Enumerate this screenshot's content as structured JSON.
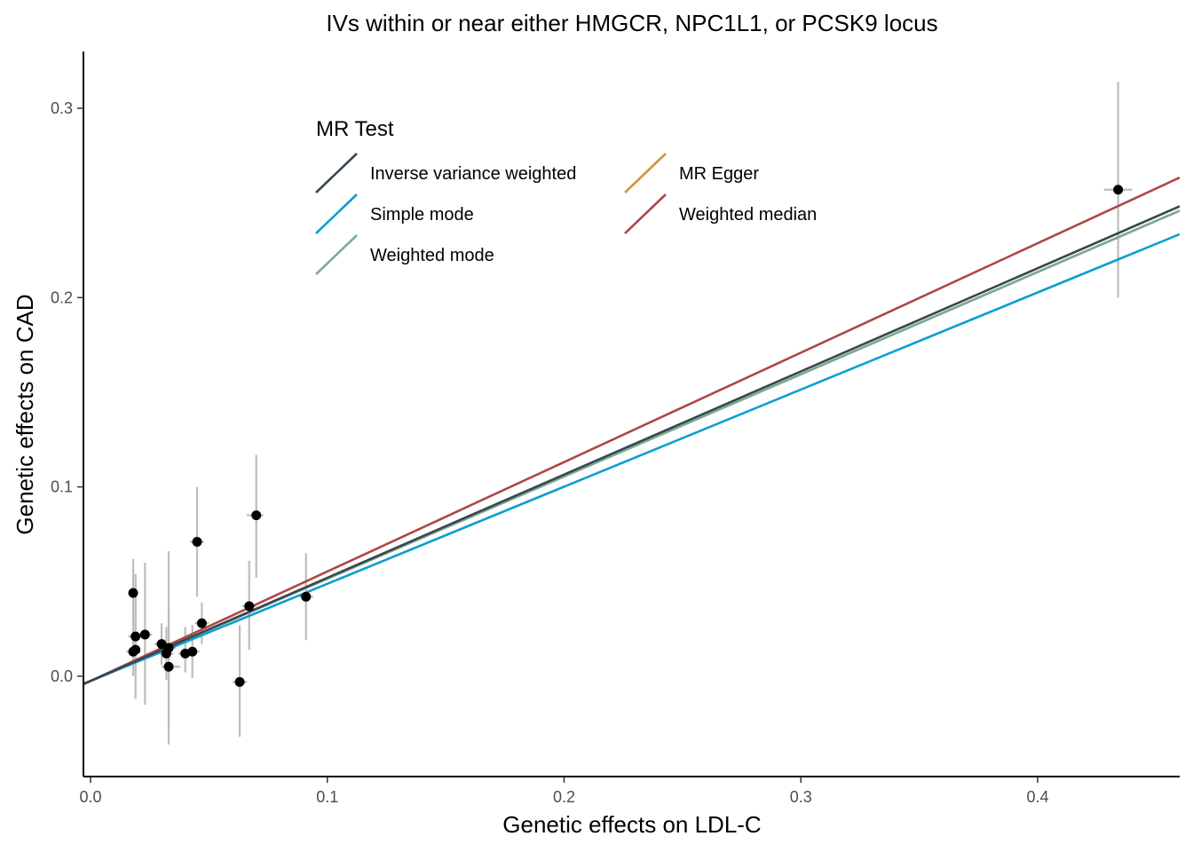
{
  "chart_data": {
    "type": "scatter",
    "title": "IVs within or near either HMGCR, NPC1L1, or PCSK9 locus",
    "xlabel": "Genetic effects on LDL-C",
    "ylabel": "Genetic effects on CAD",
    "xlim": [
      -0.003,
      0.46
    ],
    "ylim": [
      -0.053,
      0.33
    ],
    "x_ticks": [
      0.0,
      0.1,
      0.2,
      0.3,
      0.4
    ],
    "y_ticks": [
      0.0,
      0.1,
      0.2,
      0.3
    ],
    "x_tick_labels": [
      "0.0",
      "0.1",
      "0.2",
      "0.3",
      "0.4"
    ],
    "y_tick_labels": [
      "0.0",
      "0.1",
      "0.2",
      "0.3"
    ],
    "grid": false,
    "points": [
      {
        "x": 0.018,
        "y": 0.044,
        "ylo": 0.026,
        "yhi": 0.062,
        "xlo": 0.016,
        "xhi": 0.02
      },
      {
        "x": 0.018,
        "y": 0.013,
        "ylo": 0.0,
        "yhi": 0.03,
        "xlo": 0.015,
        "xhi": 0.021
      },
      {
        "x": 0.019,
        "y": 0.014,
        "ylo": 0.003,
        "yhi": 0.052,
        "xlo": 0.017,
        "xhi": 0.021
      },
      {
        "x": 0.019,
        "y": 0.021,
        "ylo": -0.012,
        "yhi": 0.054,
        "xlo": 0.016,
        "xhi": 0.022
      },
      {
        "x": 0.023,
        "y": 0.022,
        "ylo": -0.015,
        "yhi": 0.06,
        "xlo": 0.02,
        "xhi": 0.026
      },
      {
        "x": 0.03,
        "y": 0.017,
        "ylo": 0.006,
        "yhi": 0.028,
        "xlo": 0.027,
        "xhi": 0.033
      },
      {
        "x": 0.032,
        "y": 0.012,
        "ylo": -0.002,
        "yhi": 0.026,
        "xlo": 0.029,
        "xhi": 0.035
      },
      {
        "x": 0.033,
        "y": 0.015,
        "ylo": -0.028,
        "yhi": 0.066,
        "xlo": 0.03,
        "xhi": 0.036
      },
      {
        "x": 0.033,
        "y": 0.005,
        "ylo": -0.036,
        "yhi": 0.036,
        "xlo": 0.03,
        "xhi": 0.038
      },
      {
        "x": 0.04,
        "y": 0.012,
        "ylo": 0.002,
        "yhi": 0.026,
        "xlo": 0.037,
        "xhi": 0.043
      },
      {
        "x": 0.043,
        "y": 0.013,
        "ylo": -0.001,
        "yhi": 0.027,
        "xlo": 0.04,
        "xhi": 0.046
      },
      {
        "x": 0.045,
        "y": 0.071,
        "ylo": 0.042,
        "yhi": 0.1,
        "xlo": 0.042,
        "xhi": 0.048
      },
      {
        "x": 0.047,
        "y": 0.028,
        "ylo": 0.017,
        "yhi": 0.039,
        "xlo": 0.044,
        "xhi": 0.05
      },
      {
        "x": 0.063,
        "y": -0.003,
        "ylo": -0.032,
        "yhi": 0.027,
        "xlo": 0.06,
        "xhi": 0.066
      },
      {
        "x": 0.067,
        "y": 0.037,
        "ylo": 0.014,
        "yhi": 0.061,
        "xlo": 0.064,
        "xhi": 0.07
      },
      {
        "x": 0.07,
        "y": 0.085,
        "ylo": 0.052,
        "yhi": 0.117,
        "xlo": 0.066,
        "xhi": 0.073
      },
      {
        "x": 0.091,
        "y": 0.042,
        "ylo": 0.019,
        "yhi": 0.065,
        "xlo": 0.088,
        "xhi": 0.094
      },
      {
        "x": 0.434,
        "y": 0.257,
        "ylo": 0.2,
        "yhi": 0.314,
        "xlo": 0.428,
        "xhi": 0.44
      }
    ],
    "legend": {
      "title": "MR Test",
      "placement": "top-left"
    },
    "series": [
      {
        "name": "Inverse variance weighted",
        "type": "line",
        "color": "#37474f",
        "intercept": -0.0025,
        "slope": 0.545
      },
      {
        "name": "MR Egger",
        "type": "line",
        "color": "#d4943a",
        "intercept": -0.0025,
        "slope": 0.54
      },
      {
        "name": "Simple mode",
        "type": "line",
        "color": "#0b9ed1",
        "intercept": -0.0025,
        "slope": 0.513
      },
      {
        "name": "Weighted median",
        "type": "line",
        "color": "#b04646",
        "intercept": -0.0025,
        "slope": 0.578
      },
      {
        "name": "Weighted mode",
        "type": "line",
        "color": "#7aaa98",
        "intercept": -0.0025,
        "slope": 0.54
      }
    ]
  }
}
